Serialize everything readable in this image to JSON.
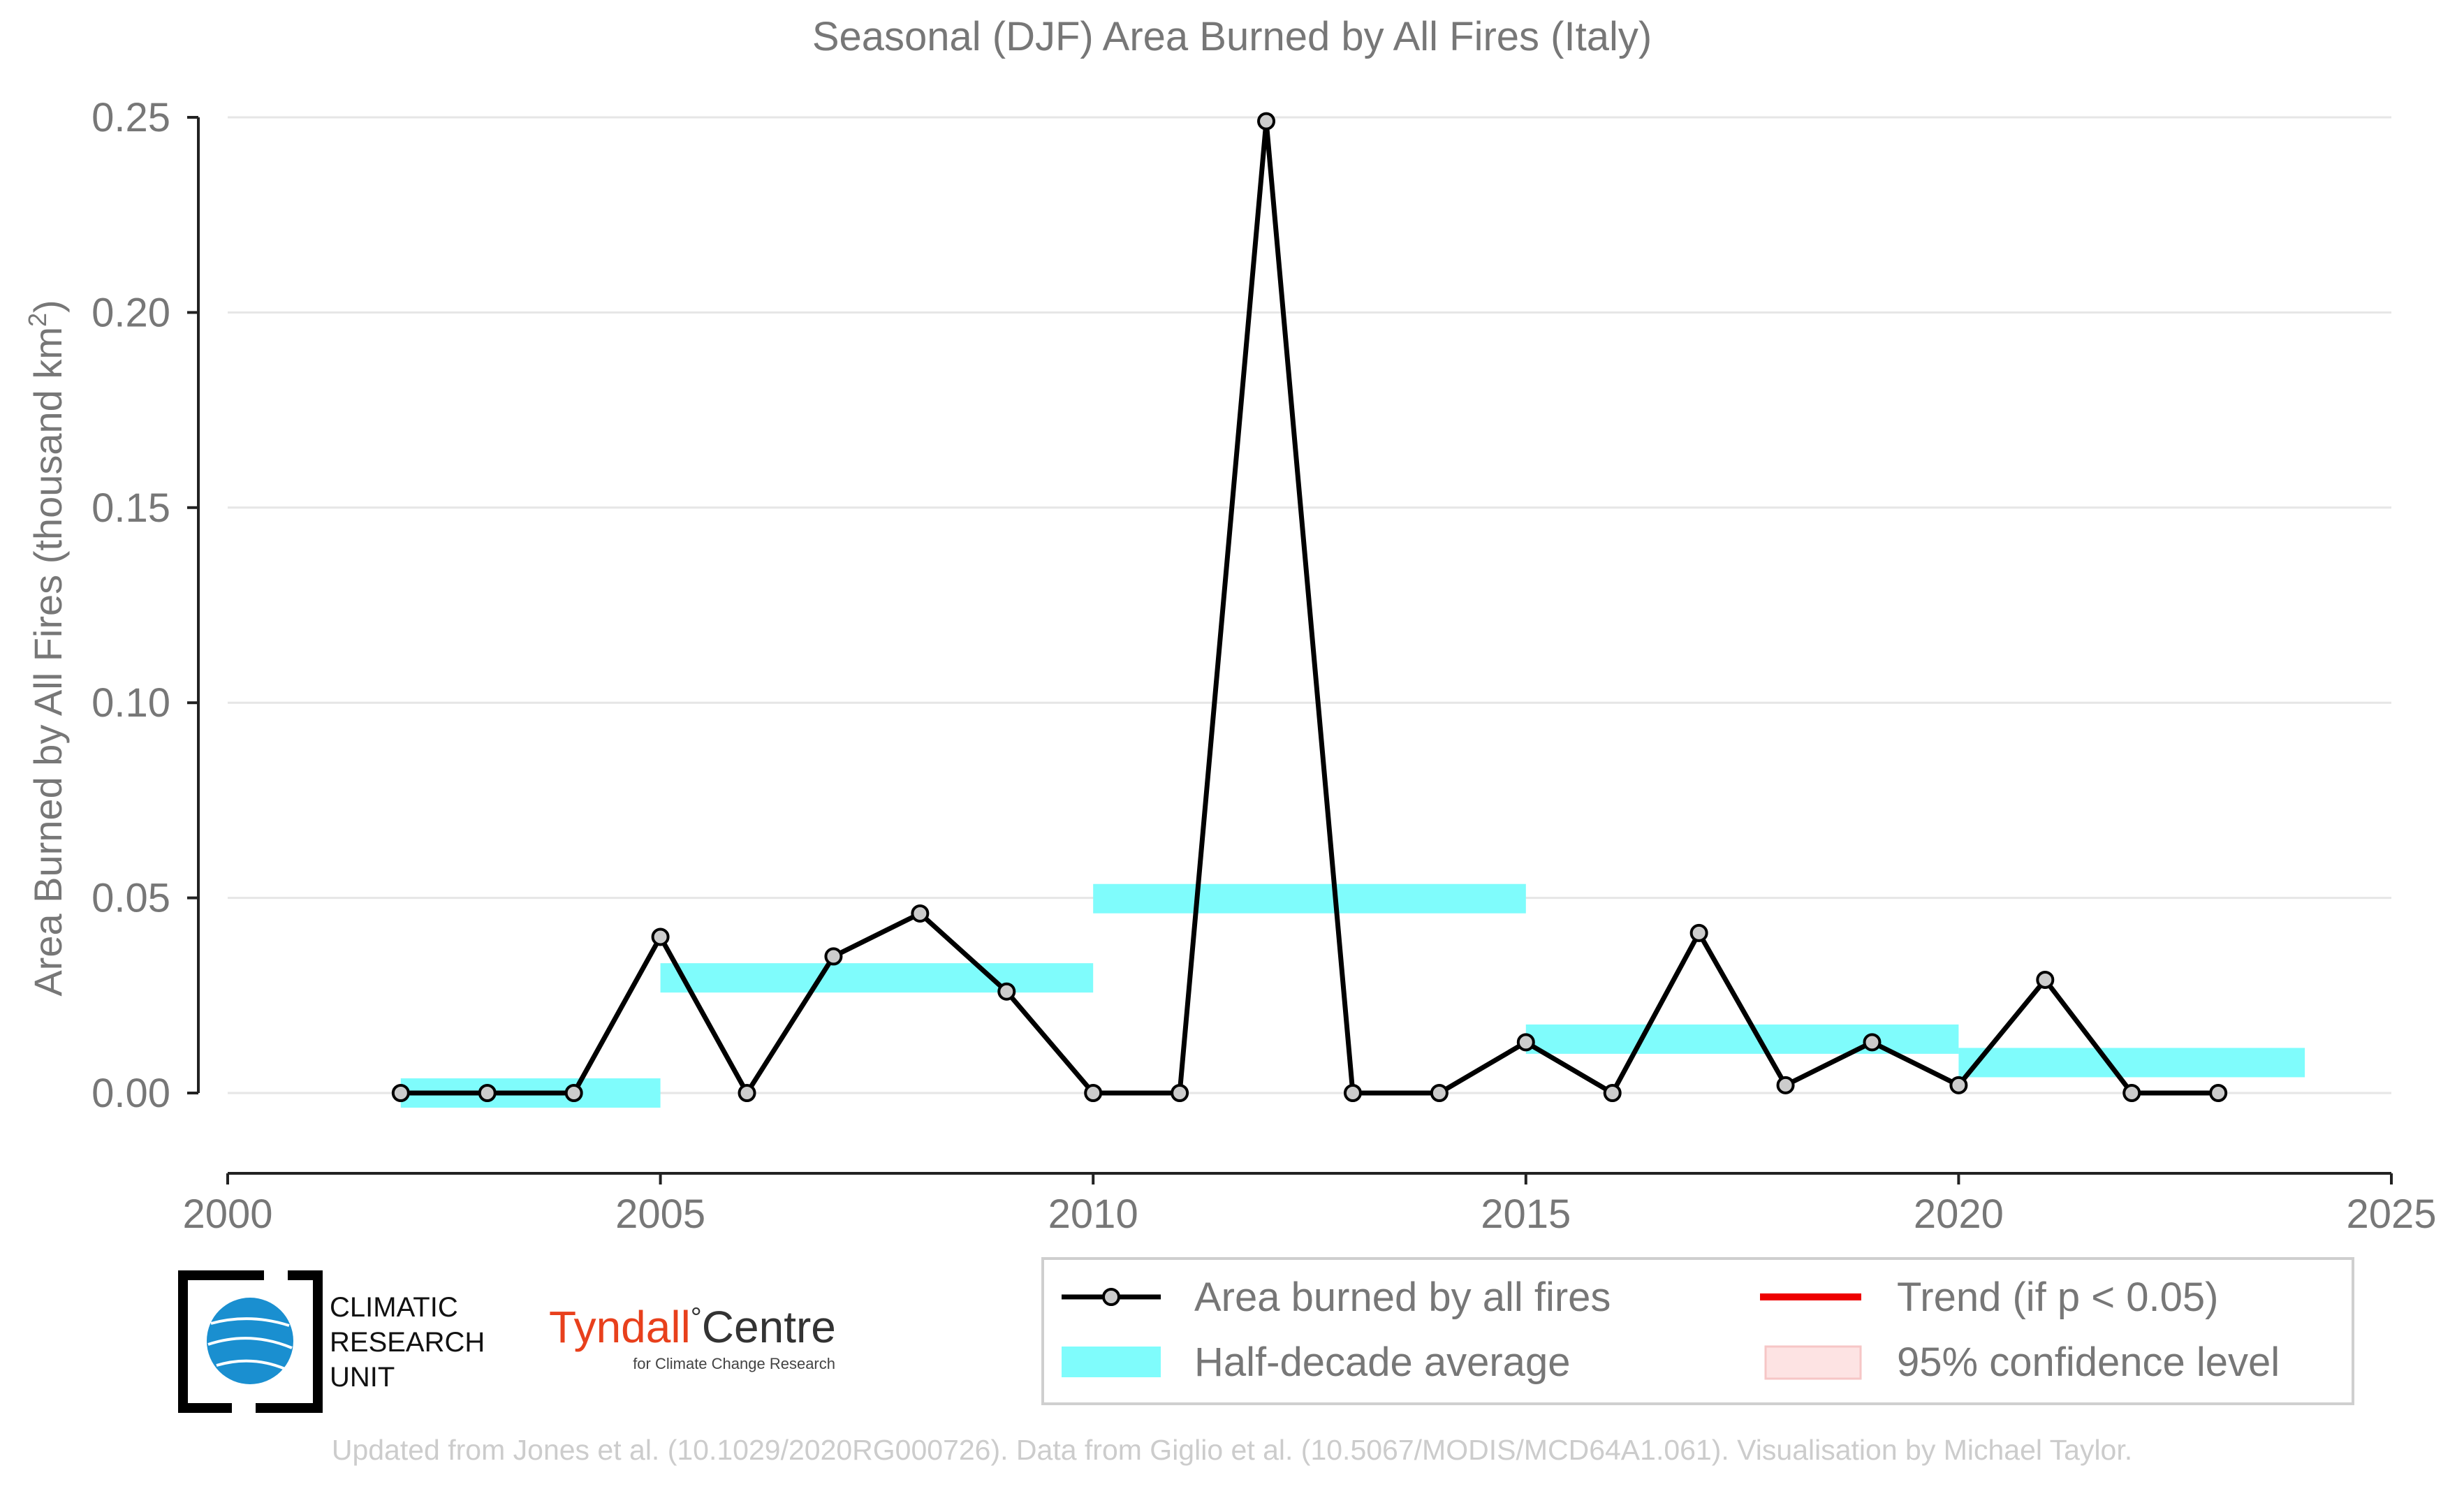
{
  "chart_data": {
    "type": "line",
    "title": "Seasonal (DJF) Area Burned by All Fires (Italy)",
    "ylabel": "Area Burned by All Fires (thousand km",
    "ylabel_sup": "2",
    "ylabel_tail": ")",
    "xlim": [
      2000,
      2025
    ],
    "ylim": [
      -0.02,
      0.25
    ],
    "x_ticks": [
      2000,
      2005,
      2010,
      2015,
      2020,
      2025
    ],
    "x_tick_labels": [
      "2000",
      "2005",
      "2010",
      "2015",
      "2020",
      "2025"
    ],
    "y_ticks": [
      0.0,
      0.05,
      0.1,
      0.15,
      0.2,
      0.25
    ],
    "y_tick_labels": [
      "0.00",
      "0.05",
      "0.10",
      "0.15",
      "0.20",
      "0.25"
    ],
    "grid": "horizontal",
    "series": [
      {
        "name": "Area burned by all fires",
        "color": "#000000",
        "marker_fill": "#cccccc",
        "x": [
          2002,
          2003,
          2004,
          2005,
          2006,
          2007,
          2008,
          2009,
          2010,
          2011,
          2012,
          2013,
          2014,
          2015,
          2016,
          2017,
          2018,
          2019,
          2020,
          2021,
          2022,
          2023
        ],
        "values": [
          0.0,
          0.0,
          0.0,
          0.04,
          0.0,
          0.035,
          0.046,
          0.026,
          0.0,
          0.0,
          0.249,
          0.0,
          0.0,
          0.013,
          0.0,
          0.041,
          0.002,
          0.013,
          0.002,
          0.029,
          0.0,
          0.0
        ]
      }
    ],
    "half_decade_average": {
      "name": "Half-decade average",
      "color": "#7ffcfc",
      "segments": [
        {
          "x0": 2002,
          "x1": 2005,
          "value": 0.0
        },
        {
          "x0": 2005,
          "x1": 2010,
          "value": 0.0295
        },
        {
          "x0": 2010,
          "x1": 2015,
          "value": 0.0498
        },
        {
          "x0": 2015,
          "x1": 2020,
          "value": 0.0138
        },
        {
          "x0": 2020,
          "x1": 2024,
          "value": 0.0078
        }
      ]
    },
    "legend": {
      "placement": "bottom-right",
      "items": [
        {
          "label": "Area burned by all fires",
          "kind": "line-marker",
          "color": "#000000"
        },
        {
          "label": "Trend (if p < 0.05)",
          "kind": "line",
          "color": "#ee0000"
        },
        {
          "label": "Half-decade average",
          "kind": "band",
          "color": "#7ffcfc"
        },
        {
          "label": "95% confidence level",
          "kind": "patch",
          "color": "#fde3e3"
        }
      ]
    },
    "credit": "Updated from Jones et al. (10.1029/2020RG000726). Data from Giglio et al. (10.5067/MODIS/MCD64A1.061). Visualisation by Michael Taylor."
  },
  "logos": {
    "cru": [
      "CLIMATIC",
      "RESEARCH",
      "UNIT"
    ],
    "tyndall_main": "Tyndall",
    "tyndall_degree": "°",
    "tyndall_centre": "Centre",
    "tyndall_sub": "for Climate Change Research",
    "cru_color": "#1a8fd0",
    "tyndall_color": "#e8401c"
  }
}
